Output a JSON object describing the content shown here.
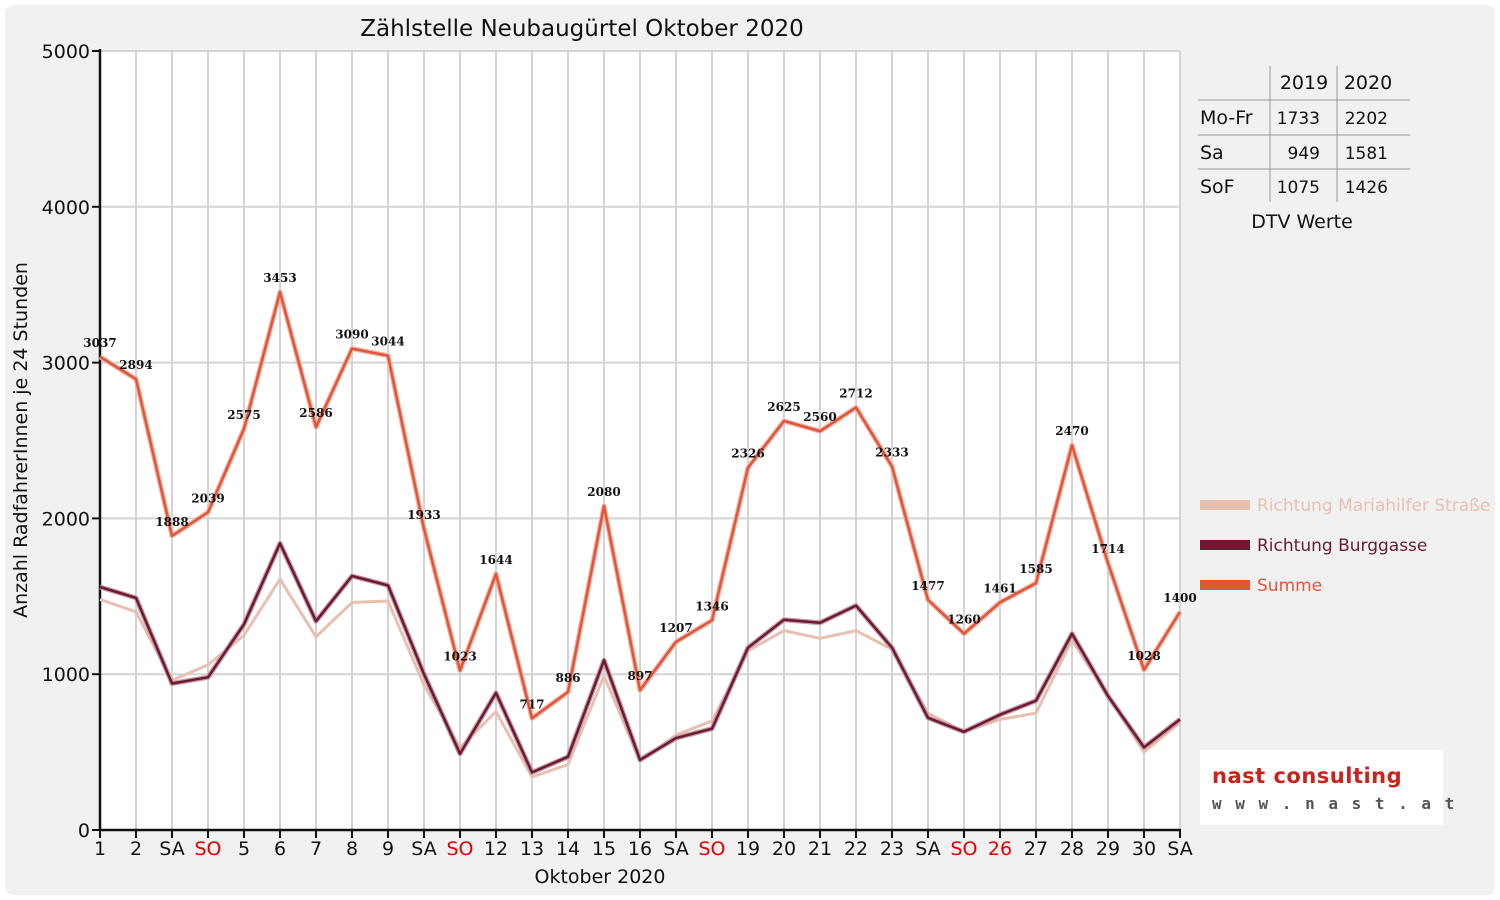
{
  "chart_data": {
    "type": "line",
    "title": "Zählstelle Neubaugürtel Oktober 2020",
    "xlabel": "Oktober 2020",
    "ylabel": "Anzahl RadfahrerInnen je 24 Stunden",
    "ylim": [
      0,
      5000
    ],
    "yticks": [
      "0",
      "1000",
      "2000",
      "3000",
      "4000",
      "5000"
    ],
    "grid": true,
    "legend_position": "right",
    "categories": [
      "1",
      "2",
      "SA",
      "SO",
      "5",
      "6",
      "7",
      "8",
      "9",
      "SA",
      "SO",
      "12",
      "13",
      "14",
      "15",
      "16",
      "SA",
      "SO",
      "19",
      "20",
      "21",
      "22",
      "23",
      "SA",
      "SO",
      "26",
      "27",
      "28",
      "29",
      "30",
      "SA"
    ],
    "highlight_categories": [
      3,
      10,
      17,
      24,
      25
    ],
    "series": [
      {
        "name": "Richtung Mariahilfer Straße",
        "color": "#e8c0b0",
        "values": [
          1480,
          1400,
          960,
          1060,
          1250,
          1610,
          1240,
          1460,
          1470,
          930,
          530,
          760,
          340,
          420,
          990,
          440,
          610,
          700,
          1150,
          1280,
          1230,
          1280,
          1160,
          750,
          630,
          710,
          750,
          1220,
          860,
          500,
          690
        ]
      },
      {
        "name": "Richtung Burggasse",
        "color": "#6b1a30",
        "values": [
          1560,
          1490,
          940,
          980,
          1320,
          1840,
          1340,
          1630,
          1570,
          1000,
          490,
          880,
          370,
          470,
          1090,
          450,
          590,
          650,
          1170,
          1350,
          1330,
          1440,
          1170,
          720,
          630,
          740,
          830,
          1260,
          860,
          530,
          710
        ]
      },
      {
        "name": "Summe",
        "color": "#e0563a",
        "values": [
          3037,
          2894,
          1888,
          2039,
          2575,
          3453,
          2586,
          3090,
          3044,
          1933,
          1023,
          1644,
          717,
          886,
          2080,
          897,
          1207,
          1346,
          2326,
          2625,
          2560,
          2712,
          2333,
          1477,
          1260,
          1461,
          1585,
          2470,
          1714,
          1028,
          1400
        ],
        "data_labels": [
          "3037",
          "2894",
          "1888",
          "2039",
          "2575",
          "3453",
          "2586",
          "3090",
          "3044",
          "1933",
          "1023",
          "1644",
          "717",
          "886",
          "2080",
          "897",
          "1207",
          "1346",
          "2326",
          "2625",
          "2560",
          "2712",
          "2333",
          "1477",
          "1260",
          "1461",
          "1585",
          "2470",
          "1714",
          "1028",
          "1400"
        ]
      }
    ]
  },
  "dtv_table": {
    "caption": "DTV Werte",
    "columns": [
      "2019",
      "2020"
    ],
    "rows": [
      {
        "label": "Mo-Fr",
        "values": [
          "1733",
          "2202"
        ]
      },
      {
        "label": "Sa",
        "values": [
          "949",
          "1581"
        ]
      },
      {
        "label": "SoF",
        "values": [
          "1075",
          "1426"
        ]
      }
    ]
  },
  "logo": {
    "name": "nast consulting",
    "url": "w w w . n a s t . a t"
  },
  "colors": {
    "weekend_red": "#e00000",
    "text": "#111111",
    "grid": "#d4d4d4",
    "frame_bg": "#f1f1f1"
  }
}
